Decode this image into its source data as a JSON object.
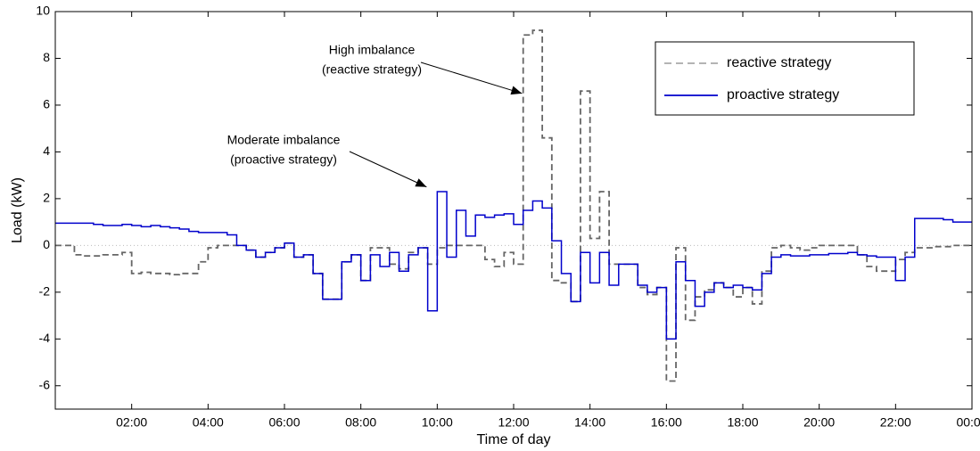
{
  "chart_data": {
    "type": "step",
    "x_label": "Time of day",
    "y_label": "Load (kW)",
    "xlim": [
      0,
      24
    ],
    "ylim": [
      -7,
      10
    ],
    "xticks": [
      {
        "value": 2,
        "label": "02:00"
      },
      {
        "value": 4,
        "label": "04:00"
      },
      {
        "value": 6,
        "label": "06:00"
      },
      {
        "value": 8,
        "label": "08:00"
      },
      {
        "value": 10,
        "label": "10:00"
      },
      {
        "value": 12,
        "label": "12:00"
      },
      {
        "value": 14,
        "label": "14:00"
      },
      {
        "value": 16,
        "label": "16:00"
      },
      {
        "value": 18,
        "label": "18:00"
      },
      {
        "value": 20,
        "label": "20:00"
      },
      {
        "value": 22,
        "label": "22:00"
      },
      {
        "value": 24,
        "label": "00:00"
      }
    ],
    "yticks": [
      -6,
      -4,
      -2,
      0,
      2,
      4,
      6,
      8,
      10
    ],
    "legend_position": "upper right",
    "x": [
      0,
      0.25,
      0.5,
      0.75,
      1,
      1.25,
      1.5,
      1.75,
      2,
      2.25,
      2.5,
      2.75,
      3,
      3.25,
      3.5,
      3.75,
      4,
      4.25,
      4.5,
      4.75,
      5,
      5.25,
      5.5,
      5.75,
      6,
      6.25,
      6.5,
      6.75,
      7,
      7.25,
      7.5,
      7.75,
      8,
      8.25,
      8.5,
      8.75,
      9,
      9.25,
      9.5,
      9.75,
      10,
      10.25,
      10.5,
      10.75,
      11,
      11.25,
      11.5,
      11.75,
      12,
      12.25,
      12.5,
      12.75,
      13,
      13.25,
      13.5,
      13.75,
      14,
      14.25,
      14.5,
      14.75,
      15,
      15.25,
      15.5,
      15.75,
      16,
      16.25,
      16.5,
      16.75,
      17,
      17.25,
      17.5,
      17.75,
      18,
      18.25,
      18.5,
      18.75,
      19,
      19.25,
      19.5,
      19.75,
      20,
      20.25,
      20.5,
      20.75,
      21,
      21.25,
      21.5,
      21.75,
      22,
      22.25,
      22.5,
      22.75,
      23,
      23.25,
      23.5,
      23.75
    ],
    "series": [
      {
        "name": "reactive strategy",
        "color": "#666666",
        "dashed": true,
        "values": [
          0,
          0,
          -0.4,
          -0.45,
          -0.45,
          -0.4,
          -0.4,
          -0.3,
          -1.2,
          -1.15,
          -1.2,
          -1.2,
          -1.25,
          -1.2,
          -1.2,
          -0.7,
          -0.1,
          0,
          0,
          0,
          -0.2,
          -0.5,
          -0.3,
          -0.1,
          0.1,
          -0.5,
          -0.4,
          -1.2,
          -2.3,
          -2.3,
          -0.7,
          -0.4,
          -1.5,
          -0.1,
          -0.1,
          -0.8,
          -1.0,
          -0.3,
          -0.1,
          -0.8,
          -0.1,
          0,
          0,
          0,
          0,
          -0.6,
          -0.9,
          -0.3,
          -0.8,
          9.0,
          9.2,
          4.6,
          -1.5,
          -1.6,
          -2.4,
          6.6,
          0.3,
          2.3,
          -0.8,
          -0.8,
          -0.8,
          -1.8,
          -2.1,
          -1.8,
          -5.8,
          -0.1,
          -3.2,
          -2.2,
          -1.9,
          -1.6,
          -1.8,
          -2.2,
          -1.8,
          -2.5,
          -1.1,
          -0.1,
          0,
          -0.1,
          -0.2,
          -0.1,
          0,
          0,
          0,
          0,
          -0.4,
          -0.9,
          -1.1,
          -1.1,
          -0.6,
          -0.3,
          -0.1,
          -0.1,
          -0.05,
          -0.05,
          0,
          0
        ]
      },
      {
        "name": "proactive strategy",
        "color": "#0000cc",
        "dashed": false,
        "values": [
          0.95,
          0.95,
          0.95,
          0.95,
          0.9,
          0.85,
          0.85,
          0.9,
          0.85,
          0.8,
          0.85,
          0.8,
          0.75,
          0.7,
          0.6,
          0.55,
          0.55,
          0.55,
          0.45,
          0,
          -0.2,
          -0.5,
          -0.3,
          -0.1,
          0.1,
          -0.5,
          -0.4,
          -1.2,
          -2.3,
          -2.3,
          -0.7,
          -0.4,
          -1.5,
          -0.4,
          -0.9,
          -0.3,
          -1.1,
          -0.4,
          -0.1,
          -2.8,
          2.3,
          -0.5,
          1.5,
          0.4,
          1.3,
          1.2,
          1.3,
          1.35,
          0.9,
          1.5,
          1.9,
          1.6,
          0.2,
          -1.2,
          -2.4,
          -0.3,
          -1.6,
          -0.3,
          -1.7,
          -0.8,
          -0.8,
          -1.7,
          -2.0,
          -1.8,
          -4.0,
          -0.7,
          -1.5,
          -2.6,
          -2.0,
          -1.6,
          -1.8,
          -1.7,
          -1.8,
          -1.9,
          -1.2,
          -0.5,
          -0.4,
          -0.45,
          -0.45,
          -0.4,
          -0.4,
          -0.35,
          -0.35,
          -0.3,
          -0.4,
          -0.45,
          -0.5,
          -0.5,
          -1.5,
          -0.5,
          1.15,
          1.15,
          1.15,
          1.1,
          1.0,
          1.0
        ]
      }
    ],
    "annotations": [
      {
        "lines": [
          "High imbalance",
          "(reactive strategy)"
        ],
        "x": 12.5,
        "y": 6.5
      },
      {
        "lines": [
          "Moderate imbalance",
          "(proactive strategy)"
        ],
        "x": 10.0,
        "y": 2.5
      }
    ]
  }
}
